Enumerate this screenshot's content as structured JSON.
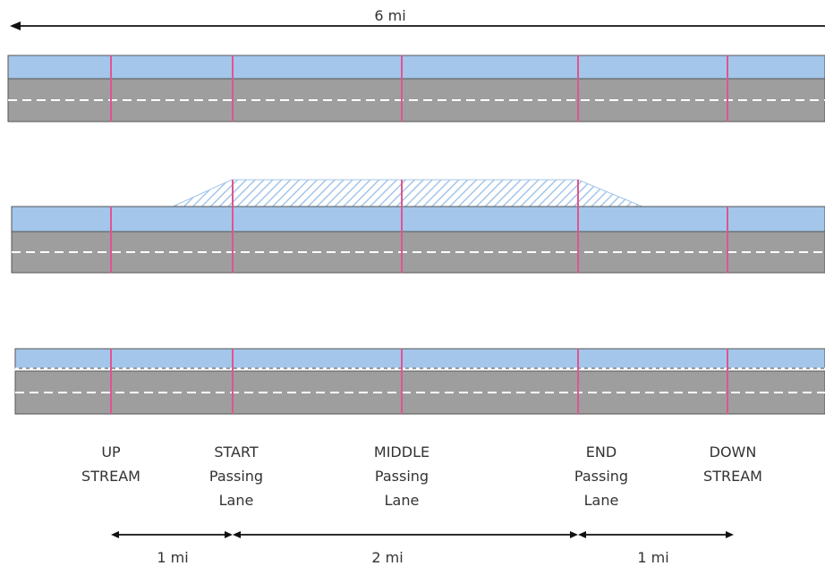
{
  "total_distance": {
    "label": "6 mi"
  },
  "sections": [
    {
      "id": "upstream",
      "lines": [
        "UP",
        "STREAM"
      ]
    },
    {
      "id": "start",
      "lines": [
        "START",
        "Passing",
        "Lane"
      ]
    },
    {
      "id": "middle",
      "lines": [
        "MIDDLE",
        "Passing",
        "Lane"
      ]
    },
    {
      "id": "end",
      "lines": [
        "END",
        "Passing",
        "Lane"
      ]
    },
    {
      "id": "downstream",
      "lines": [
        "DOWN",
        "STREAM"
      ]
    }
  ],
  "segments": [
    {
      "label": "1 mi"
    },
    {
      "label": "2 mi"
    },
    {
      "label": "1 mi"
    }
  ],
  "colors": {
    "shoulder": "#a4c6ea",
    "road": "#9e9e9e",
    "marker": "#e0558f",
    "lane_dash": "#ffffff",
    "arrow": "#111111"
  }
}
